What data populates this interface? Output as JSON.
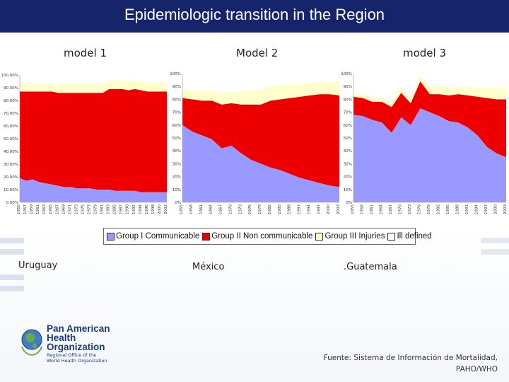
{
  "header": {
    "title": "Epidemiologic transition in the Region"
  },
  "models": {
    "m1": "model 1",
    "m2": "Model 2",
    "m3": "model 3"
  },
  "countries": {
    "c1": "Uruguay",
    "c2": "México",
    "c3": ".Guatemala"
  },
  "legend": [
    {
      "label": "Group I Communicable",
      "color": "#9999ff"
    },
    {
      "label": "Group II Non communicable",
      "color": "#ee0000"
    },
    {
      "label": "Group III Injuries",
      "color": "#ffffcc"
    },
    {
      "label": "Ill defined",
      "color": "#ffffff"
    }
  ],
  "source": {
    "line1": "Fuente: Sistema de Información de Mortalidad,",
    "line2": "PAHO/WHO"
  },
  "logo": {
    "line1": "Pan American",
    "line2": "Health",
    "line3": "Organization",
    "sub1": "Regional Office of the",
    "sub2": "World Health Organization"
  },
  "chart_data": [
    {
      "type": "area",
      "title": "Uruguay",
      "ylim": [
        0,
        100
      ],
      "yticks": [
        "0.00%",
        "10.00%",
        "20.00%",
        "30.00%",
        "40.00%",
        "50.00%",
        "60.00%",
        "70.00%",
        "80.00%",
        "90.00%",
        "100.00%"
      ],
      "x": [
        "1955",
        "1957",
        "1959",
        "1961",
        "1963",
        "1965",
        "1967",
        "1969",
        "1971",
        "1973",
        "1975",
        "1977",
        "1979",
        "1981",
        "1983",
        "1985",
        "1987",
        "1990",
        "1992",
        "1994",
        "1996",
        "1998",
        "2000",
        "2002"
      ],
      "series": [
        {
          "name": "Group I Communicable",
          "color": "#9999ff",
          "values": [
            19,
            17,
            18,
            16,
            15,
            14,
            13,
            12,
            12,
            11,
            11,
            11,
            10,
            10,
            10,
            9,
            9,
            9,
            9,
            8,
            8,
            8,
            8,
            8
          ]
        },
        {
          "name": "Group II Non communicable",
          "color": "#ee0000",
          "values": [
            68,
            70,
            69,
            71,
            72,
            73,
            73,
            74,
            74,
            75,
            75,
            75,
            76,
            76,
            79,
            80,
            80,
            79,
            80,
            80,
            79,
            79,
            79,
            79
          ]
        },
        {
          "name": "Group III Injuries",
          "color": "#ffffcc",
          "values": [
            6,
            6,
            6,
            6,
            6,
            6,
            7,
            7,
            7,
            7,
            7,
            7,
            7,
            7,
            7,
            7,
            7,
            7,
            7,
            7,
            7,
            7,
            7,
            7
          ]
        },
        {
          "name": "Ill defined",
          "color": "#ffffff",
          "values": [
            7,
            7,
            7,
            7,
            7,
            7,
            7,
            7,
            7,
            7,
            7,
            7,
            7,
            7,
            4,
            4,
            4,
            5,
            4,
            5,
            6,
            6,
            6,
            6
          ]
        }
      ]
    },
    {
      "type": "area",
      "title": "México",
      "ylim": [
        0,
        100
      ],
      "yticks": [
        "0%",
        "10%",
        "20%",
        "30%",
        "40%",
        "50%",
        "60%",
        "70%",
        "80%",
        "90%",
        "100%"
      ],
      "x": [
        "1955",
        "1958",
        "1961",
        "1964",
        "1967",
        "1970",
        "1973",
        "1976",
        "1979",
        "1982",
        "1985",
        "1988",
        "1991",
        "1994",
        "1997",
        "2000",
        "2003"
      ],
      "series": [
        {
          "name": "Group I Communicable",
          "color": "#9999ff",
          "values": [
            60,
            55,
            52,
            49,
            42,
            44,
            38,
            33,
            30,
            27,
            25,
            22,
            19,
            17,
            15,
            13,
            12
          ]
        },
        {
          "name": "Group II Non communicable",
          "color": "#ee0000",
          "values": [
            21,
            25,
            27,
            30,
            34,
            33,
            38,
            43,
            46,
            52,
            55,
            59,
            63,
            66,
            69,
            71,
            71
          ]
        },
        {
          "name": "Group III Injuries",
          "color": "#ffffcc",
          "values": [
            7,
            7,
            7,
            8,
            9,
            9,
            10,
            11,
            12,
            11,
            11,
            11,
            10,
            10,
            10,
            10,
            11
          ]
        },
        {
          "name": "Ill defined",
          "color": "#ffffff",
          "values": [
            12,
            13,
            14,
            13,
            15,
            14,
            14,
            13,
            12,
            10,
            9,
            8,
            8,
            7,
            6,
            6,
            6
          ]
        }
      ]
    },
    {
      "type": "area",
      "title": "Guatemala",
      "ylim": [
        0,
        100
      ],
      "yticks": [
        "0%",
        "10%",
        "20%",
        "30%",
        "40%",
        "50%",
        "60%",
        "70%",
        "80%",
        "90%",
        "100%"
      ],
      "x": [
        "1955",
        "1958",
        "1961",
        "1964",
        "1967",
        "1970",
        "1973",
        "1976",
        "1979",
        "1982",
        "1985",
        "1988",
        "1991",
        "1994",
        "1997",
        "2000",
        "2003"
      ],
      "series": [
        {
          "name": "Group I Communicable",
          "color": "#9999ff",
          "values": [
            68,
            67,
            64,
            62,
            54,
            66,
            60,
            73,
            70,
            67,
            63,
            62,
            58,
            52,
            43,
            38,
            35
          ]
        },
        {
          "name": "Group II Non communicable",
          "color": "#ee0000",
          "values": [
            14,
            14,
            14,
            16,
            20,
            19,
            17,
            21,
            14,
            17,
            20,
            22,
            25,
            30,
            38,
            42,
            45
          ]
        },
        {
          "name": "Group III Injuries",
          "color": "#ffffcc",
          "values": [
            2,
            3,
            3,
            3,
            4,
            4,
            4,
            5,
            6,
            7,
            6,
            6,
            7,
            7,
            8,
            9,
            10
          ]
        },
        {
          "name": "Ill defined",
          "color": "#ffffff",
          "values": [
            16,
            16,
            19,
            19,
            22,
            11,
            19,
            1,
            10,
            9,
            11,
            10,
            10,
            11,
            11,
            11,
            10
          ]
        }
      ]
    }
  ]
}
